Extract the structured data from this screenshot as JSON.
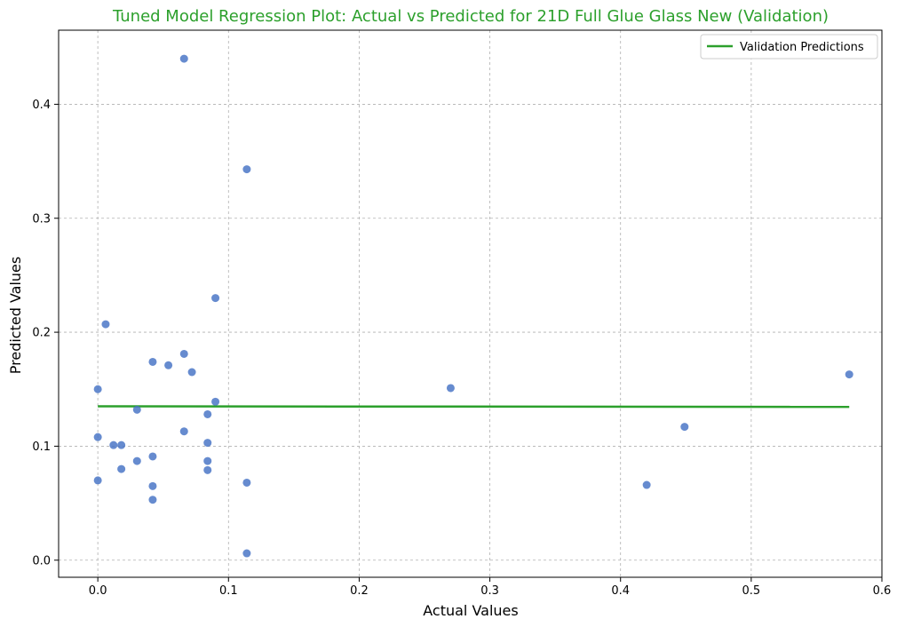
{
  "chart_data": {
    "type": "scatter",
    "title": "Tuned Model Regression Plot: Actual vs Predicted for 21D Full Glue Glass New (Validation)",
    "xlabel": "Actual Values",
    "ylabel": "Predicted Values",
    "xlim": [
      -0.03,
      0.6
    ],
    "ylim": [
      -0.015,
      0.465
    ],
    "grid": true,
    "legend_placement": "top-right",
    "title_color": "#2ca02c",
    "points_color": "#4472c4",
    "line_color": "#2ca02c",
    "xticks": [
      {
        "value": 0.0,
        "label": "0.0"
      },
      {
        "value": 0.1,
        "label": "0.1"
      },
      {
        "value": 0.2,
        "label": "0.2"
      },
      {
        "value": 0.3,
        "label": "0.3"
      },
      {
        "value": 0.4,
        "label": "0.4"
      },
      {
        "value": 0.5,
        "label": "0.5"
      },
      {
        "value": 0.6,
        "label": "0.6"
      }
    ],
    "yticks": [
      {
        "value": 0.0,
        "label": "0.0"
      },
      {
        "value": 0.1,
        "label": "0.1"
      },
      {
        "value": 0.2,
        "label": "0.2"
      },
      {
        "value": 0.3,
        "label": "0.3"
      },
      {
        "value": 0.4,
        "label": "0.4"
      }
    ],
    "points": [
      {
        "x": 0.066,
        "y": 0.44
      },
      {
        "x": 0.114,
        "y": 0.343
      },
      {
        "x": 0.09,
        "y": 0.23
      },
      {
        "x": 0.006,
        "y": 0.207
      },
      {
        "x": 0.066,
        "y": 0.181
      },
      {
        "x": 0.042,
        "y": 0.174
      },
      {
        "x": 0.054,
        "y": 0.171
      },
      {
        "x": 0.072,
        "y": 0.165
      },
      {
        "x": 0.0,
        "y": 0.15
      },
      {
        "x": 0.09,
        "y": 0.139
      },
      {
        "x": 0.03,
        "y": 0.132
      },
      {
        "x": 0.084,
        "y": 0.128
      },
      {
        "x": 0.066,
        "y": 0.113
      },
      {
        "x": 0.0,
        "y": 0.108
      },
      {
        "x": 0.012,
        "y": 0.101
      },
      {
        "x": 0.018,
        "y": 0.101
      },
      {
        "x": 0.084,
        "y": 0.103
      },
      {
        "x": 0.042,
        "y": 0.091
      },
      {
        "x": 0.03,
        "y": 0.087
      },
      {
        "x": 0.084,
        "y": 0.087
      },
      {
        "x": 0.018,
        "y": 0.08
      },
      {
        "x": 0.084,
        "y": 0.079
      },
      {
        "x": 0.0,
        "y": 0.07
      },
      {
        "x": 0.114,
        "y": 0.068
      },
      {
        "x": 0.042,
        "y": 0.065
      },
      {
        "x": 0.042,
        "y": 0.053
      },
      {
        "x": 0.114,
        "y": 0.006
      },
      {
        "x": 0.27,
        "y": 0.151
      },
      {
        "x": 0.42,
        "y": 0.066
      },
      {
        "x": 0.449,
        "y": 0.117
      },
      {
        "x": 0.575,
        "y": 0.163
      }
    ],
    "series": [
      {
        "name": "Validation Predictions",
        "type": "line",
        "x": [
          0.0,
          0.575
        ],
        "y": [
          0.135,
          0.1345
        ]
      }
    ]
  }
}
